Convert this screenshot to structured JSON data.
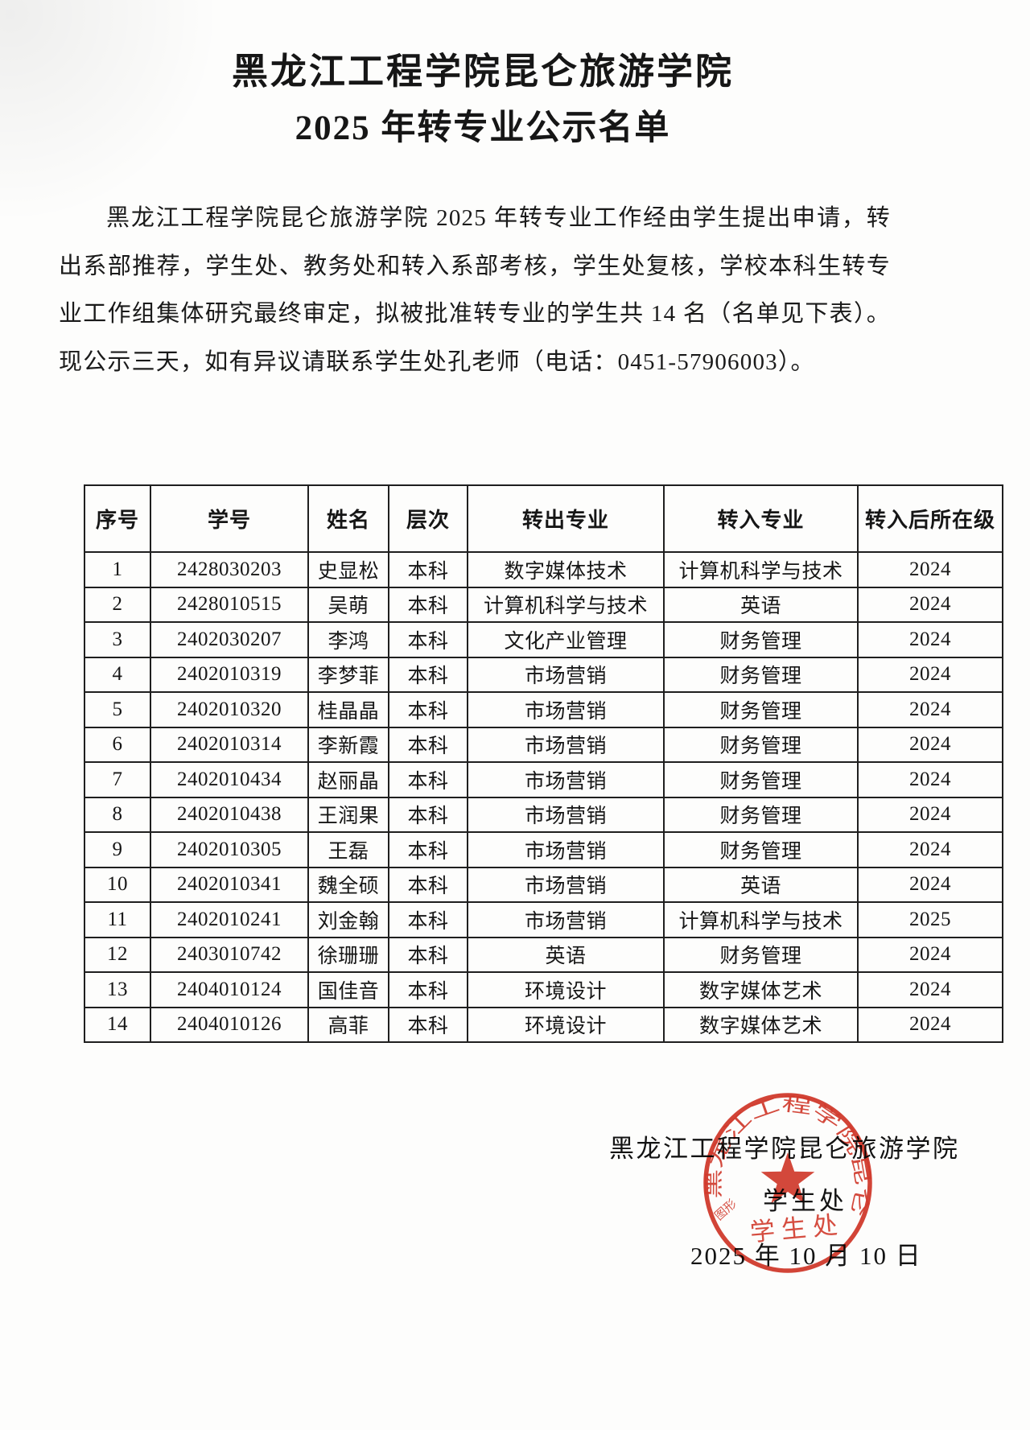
{
  "doc": {
    "title_line1": "黑龙江工程学院昆仑旅游学院",
    "title_line2": "2025 年转专业公示名单",
    "paragraph": "黑龙江工程学院昆仑旅游学院 2025 年转专业工作经由学生提出申请，转出系部推荐，学生处、教务处和转入系部考核，学生处复核，学校本科生转专业工作组集体研究最终审定，拟被批准转专业的学生共 14 名（名单见下表）。现公示三天，如有异议请联系学生处孔老师（电话：0451-57906003）。"
  },
  "table": {
    "headers": [
      "序号",
      "学号",
      "姓名",
      "层次",
      "转出专业",
      "转入专业",
      "转入后所在级"
    ],
    "rows": [
      [
        "1",
        "2428030203",
        "史显松",
        "本科",
        "数字媒体技术",
        "计算机科学与技术",
        "2024"
      ],
      [
        "2",
        "2428010515",
        "吴萌",
        "本科",
        "计算机科学与技术",
        "英语",
        "2024"
      ],
      [
        "3",
        "2402030207",
        "李鸿",
        "本科",
        "文化产业管理",
        "财务管理",
        "2024"
      ],
      [
        "4",
        "2402010319",
        "李梦菲",
        "本科",
        "市场营销",
        "财务管理",
        "2024"
      ],
      [
        "5",
        "2402010320",
        "桂晶晶",
        "本科",
        "市场营销",
        "财务管理",
        "2024"
      ],
      [
        "6",
        "2402010314",
        "李新霞",
        "本科",
        "市场营销",
        "财务管理",
        "2024"
      ],
      [
        "7",
        "2402010434",
        "赵丽晶",
        "本科",
        "市场营销",
        "财务管理",
        "2024"
      ],
      [
        "8",
        "2402010438",
        "王润果",
        "本科",
        "市场营销",
        "财务管理",
        "2024"
      ],
      [
        "9",
        "2402010305",
        "王磊",
        "本科",
        "市场营销",
        "财务管理",
        "2024"
      ],
      [
        "10",
        "2402010341",
        "魏全硕",
        "本科",
        "市场营销",
        "英语",
        "2024"
      ],
      [
        "11",
        "2402010241",
        "刘金翰",
        "本科",
        "市场营销",
        "计算机科学与技术",
        "2025"
      ],
      [
        "12",
        "2403010742",
        "徐珊珊",
        "本科",
        "英语",
        "财务管理",
        "2024"
      ],
      [
        "13",
        "2404010124",
        "国佳音",
        "本科",
        "环境设计",
        "数字媒体艺术",
        "2024"
      ],
      [
        "14",
        "2404010126",
        "高菲",
        "本科",
        "环境设计",
        "数字媒体艺术",
        "2024"
      ]
    ]
  },
  "footer": {
    "org": "黑龙江工程学院昆仑旅游学院",
    "dept": "学生处",
    "date": "2025 年 10 月 10 日"
  },
  "seal": {
    "ring_text": "黑龙江工程学院昆仑旅游学院",
    "center_text": "学生处",
    "corner_text": "图形",
    "color": "#cf2a1b"
  }
}
